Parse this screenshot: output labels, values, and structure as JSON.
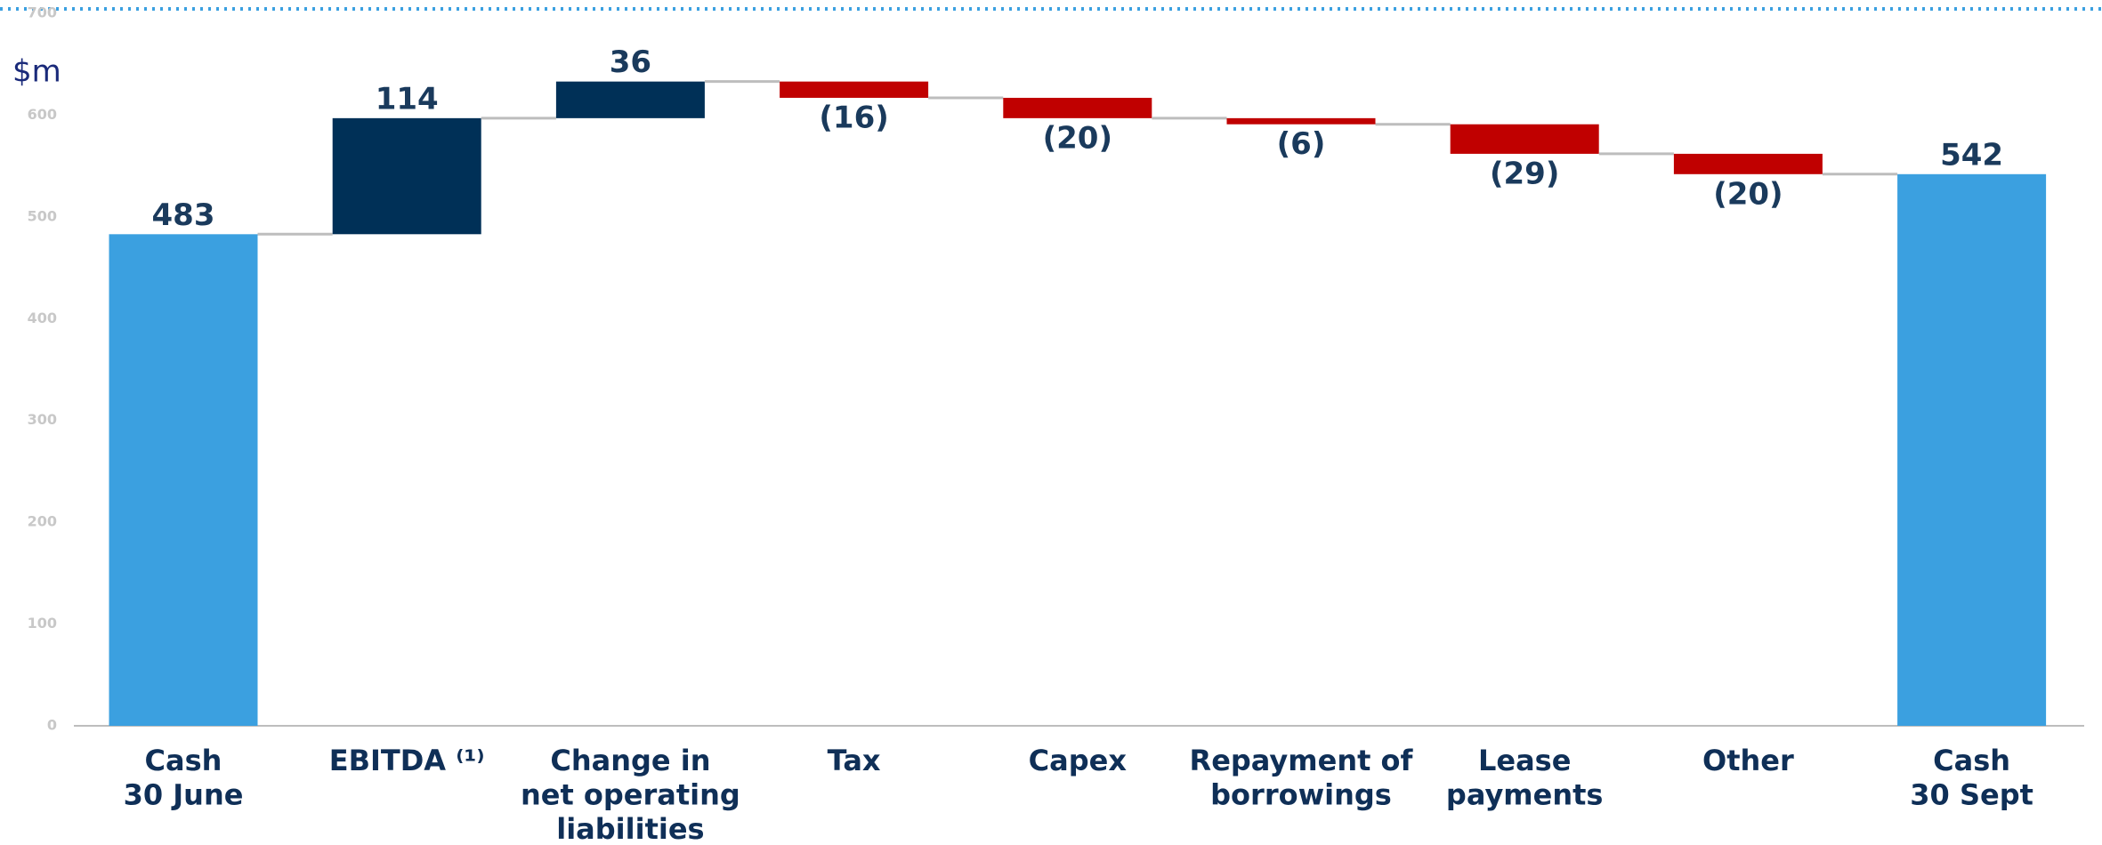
{
  "chart_data": {
    "type": "waterfall",
    "unit_label": "$m",
    "categories": [
      [
        "Cash",
        "30 June"
      ],
      [
        "EBITDA ⁽¹⁾"
      ],
      [
        "Change in",
        "net operating",
        "liabilities"
      ],
      [
        "Tax"
      ],
      [
        "Capex"
      ],
      [
        "Repayment of",
        "borrowings"
      ],
      [
        "Lease",
        "payments"
      ],
      [
        "Other"
      ],
      [
        "Cash",
        "30 Sept"
      ]
    ],
    "values": [
      483,
      114,
      36,
      -16,
      -20,
      -6,
      -29,
      -20,
      542
    ],
    "value_labels": [
      "483",
      "114",
      "36",
      "(16)",
      "(20)",
      "(6)",
      "(29)",
      "(20)",
      "542"
    ],
    "bar_colors": [
      "#3ba0e0",
      "#003057",
      "#003057",
      "#c00000",
      "#c00000",
      "#c00000",
      "#c00000",
      "#c00000",
      "#3ba0e0"
    ],
    "ylim": [
      0,
      700
    ],
    "yticks": [
      0,
      100,
      200,
      300,
      400,
      500,
      600,
      700
    ]
  }
}
